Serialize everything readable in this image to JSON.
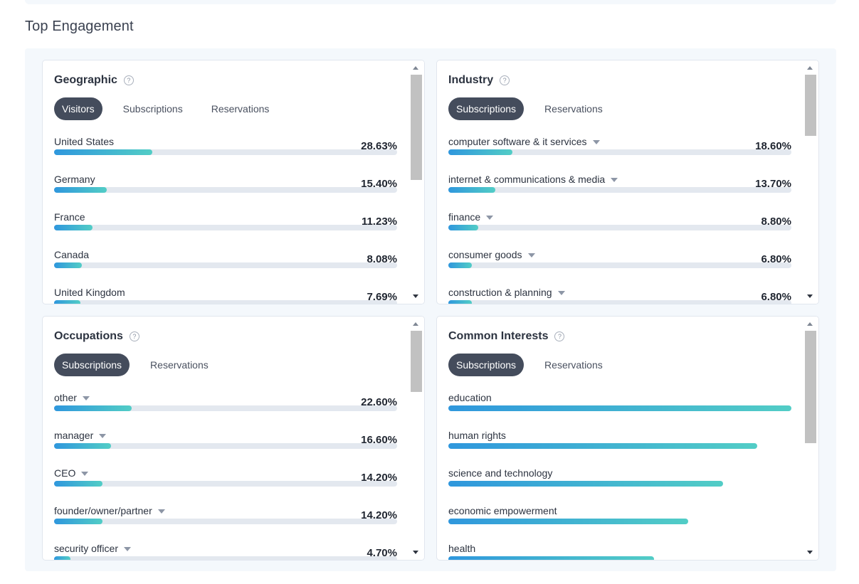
{
  "section_title": "Top Engagement",
  "cards": [
    {
      "title": "Geographic",
      "tabs": [
        "Visitors",
        "Subscriptions",
        "Reservations"
      ],
      "active_tab": "Visitors",
      "rows": [
        {
          "label": "United States",
          "value": "28.63%",
          "fill": 0.2863,
          "caret": false
        },
        {
          "label": "Germany",
          "value": "15.40%",
          "fill": 0.154,
          "caret": false
        },
        {
          "label": "France",
          "value": "11.23%",
          "fill": 0.1123,
          "caret": false
        },
        {
          "label": "Canada",
          "value": "8.08%",
          "fill": 0.0808,
          "caret": false
        },
        {
          "label": "United Kingdom",
          "value": "7.69%",
          "fill": 0.0769,
          "caret": false
        }
      ]
    },
    {
      "title": "Industry",
      "tabs": [
        "Subscriptions",
        "Reservations"
      ],
      "active_tab": "Subscriptions",
      "rows": [
        {
          "label": "computer software & it services",
          "value": "18.60%",
          "fill": 0.186,
          "caret": true
        },
        {
          "label": "internet & communications & media",
          "value": "13.70%",
          "fill": 0.137,
          "caret": true
        },
        {
          "label": "finance",
          "value": "8.80%",
          "fill": 0.088,
          "caret": true
        },
        {
          "label": "consumer goods",
          "value": "6.80%",
          "fill": 0.068,
          "caret": true
        },
        {
          "label": "construction & planning",
          "value": "6.80%",
          "fill": 0.068,
          "caret": true
        }
      ]
    },
    {
      "title": "Occupations",
      "tabs": [
        "Subscriptions",
        "Reservations"
      ],
      "active_tab": "Subscriptions",
      "rows": [
        {
          "label": "other",
          "value": "22.60%",
          "fill": 0.226,
          "caret": true
        },
        {
          "label": "manager",
          "value": "16.60%",
          "fill": 0.166,
          "caret": true
        },
        {
          "label": "CEO",
          "value": "14.20%",
          "fill": 0.142,
          "caret": true
        },
        {
          "label": "founder/owner/partner",
          "value": "14.20%",
          "fill": 0.142,
          "caret": true
        },
        {
          "label": "security officer",
          "value": "4.70%",
          "fill": 0.047,
          "caret": true
        }
      ]
    },
    {
      "title": "Common Interests",
      "tabs": [
        "Subscriptions",
        "Reservations"
      ],
      "active_tab": "Subscriptions",
      "rows": [
        {
          "label": "education",
          "value": "",
          "fill": 1.0,
          "caret": false
        },
        {
          "label": "human rights",
          "value": "",
          "fill": 0.9,
          "caret": false
        },
        {
          "label": "science and technology",
          "value": "",
          "fill": 0.8,
          "caret": false
        },
        {
          "label": "economic empowerment",
          "value": "",
          "fill": 0.7,
          "caret": false
        },
        {
          "label": "health",
          "value": "",
          "fill": 0.6,
          "caret": false
        }
      ]
    }
  ],
  "icons": {
    "help": "question-circle-icon",
    "caret": "caret-down-icon",
    "scroll_up": "scroll-up-arrow-icon",
    "scroll_down": "scroll-down-arrow-icon"
  },
  "colors": {
    "active_tab_bg": "#444c5c",
    "bar_gradient_start": "#2f97dd",
    "bar_gradient_end": "#52cdc6",
    "track": "#e3e8ef",
    "panel_bg": "#f4f8fc"
  },
  "help_glyph": "?"
}
